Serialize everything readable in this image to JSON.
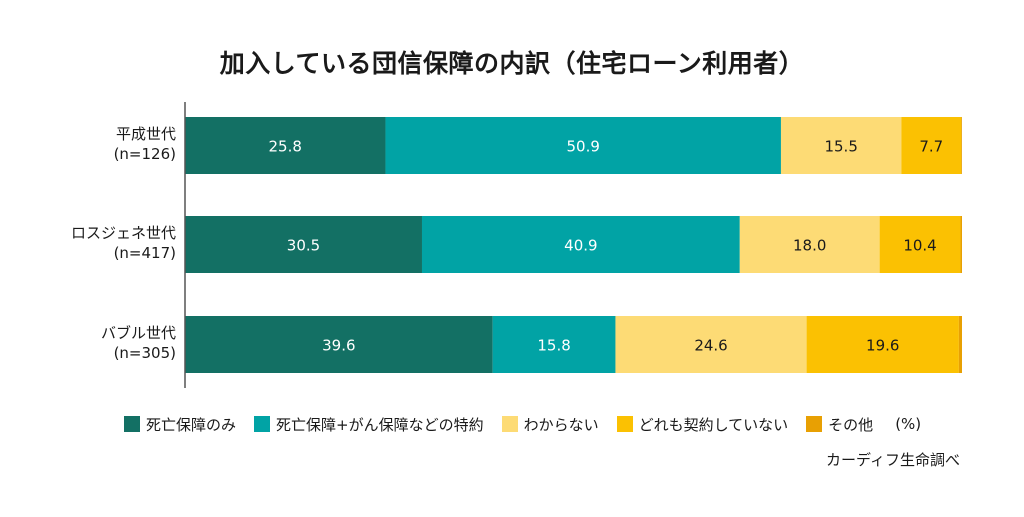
{
  "chart_data": {
    "type": "bar",
    "orientation": "horizontal",
    "stacked": true,
    "title": "加入している団信保障の内訳（住宅ローン利用者）",
    "unit": "(%)",
    "source": "カーディフ生命調べ",
    "xlim": [
      0,
      100
    ],
    "categories": [
      {
        "name": "平成世代",
        "n": "(n=126)"
      },
      {
        "name": "ロスジェネ世代",
        "n": "(n=417)"
      },
      {
        "name": "バブル世代",
        "n": "(n=305)"
      }
    ],
    "series": [
      {
        "name": "死亡保障のみ",
        "color": "#137064",
        "label_color": "#ffffff",
        "values": [
          25.8,
          30.5,
          39.6
        ],
        "labels": [
          "25.8",
          "30.5",
          "39.6"
        ]
      },
      {
        "name": "死亡保障+がん保障などの特約",
        "color": "#01a3a5",
        "label_color": "#ffffff",
        "values": [
          50.9,
          40.9,
          15.8
        ],
        "labels": [
          "50.9",
          "40.9",
          "15.8"
        ]
      },
      {
        "name": "わからない",
        "color": "#fddb75",
        "label_color": "#1a1a1a",
        "values": [
          15.5,
          18.0,
          24.6
        ],
        "labels": [
          "15.5",
          "18.0",
          "24.6"
        ]
      },
      {
        "name": "どれも契約していない",
        "color": "#fbc102",
        "label_color": "#1a1a1a",
        "values": [
          7.7,
          10.4,
          19.6
        ],
        "labels": [
          "7.7",
          "10.4",
          "19.6"
        ]
      },
      {
        "name": "その他",
        "color": "#e8a003",
        "label_color": "#1a1a1a",
        "values": [
          0.1,
          0.2,
          0.4
        ],
        "labels": [
          "",
          "",
          ""
        ]
      }
    ]
  }
}
